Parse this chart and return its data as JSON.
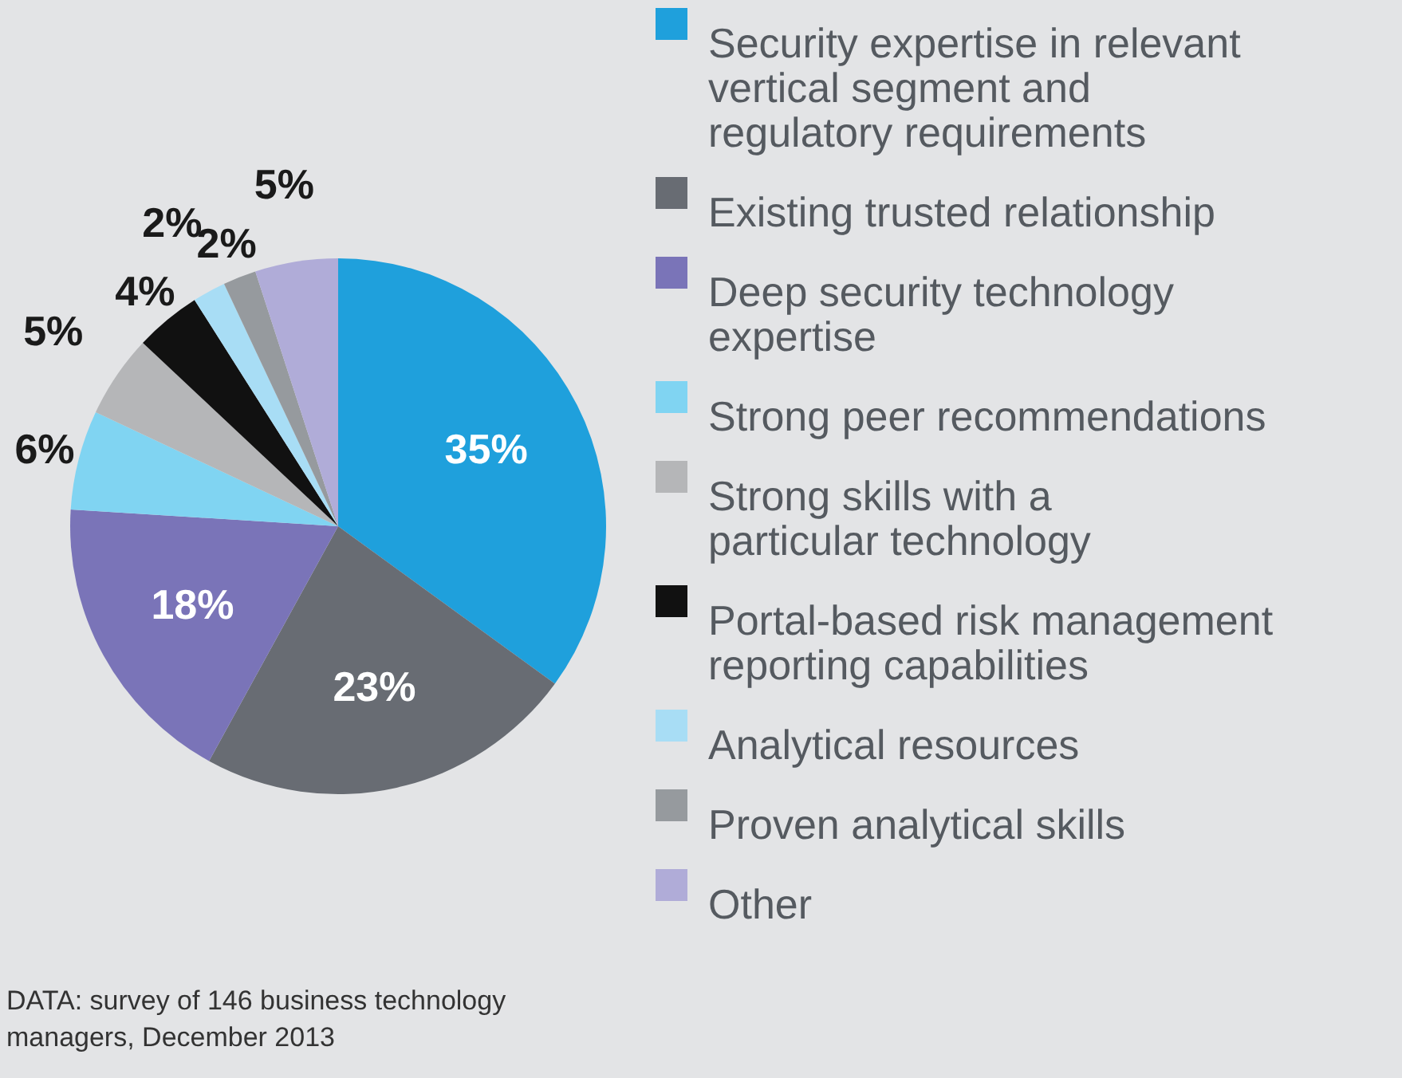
{
  "chart_data": {
    "type": "pie",
    "categories": [
      "Security expertise in relevant vertical segment and regulatory requirements",
      "Existing trusted relationship",
      "Deep security technology expertise",
      "Strong peer recommendations",
      "Strong skills with a particular technology",
      "Portal-based risk management reporting capabilities",
      "Analytical resources",
      "Proven analytical skills",
      "Other"
    ],
    "values": [
      35,
      23,
      18,
      6,
      5,
      4,
      2,
      2,
      5
    ],
    "value_labels": [
      "35%",
      "23%",
      "18%",
      "6%",
      "5%",
      "4%",
      "2%",
      "2%",
      "5%"
    ],
    "colors": [
      "#1fa0dc",
      "#686c73",
      "#7a74b8",
      "#80d4f2",
      "#b5b6b8",
      "#111111",
      "#a8ddf5",
      "#969a9e",
      "#b0acd8"
    ],
    "legend": "right",
    "annotations": [
      "DATA: survey of 146 business technology managers, December 2013"
    ]
  }
}
